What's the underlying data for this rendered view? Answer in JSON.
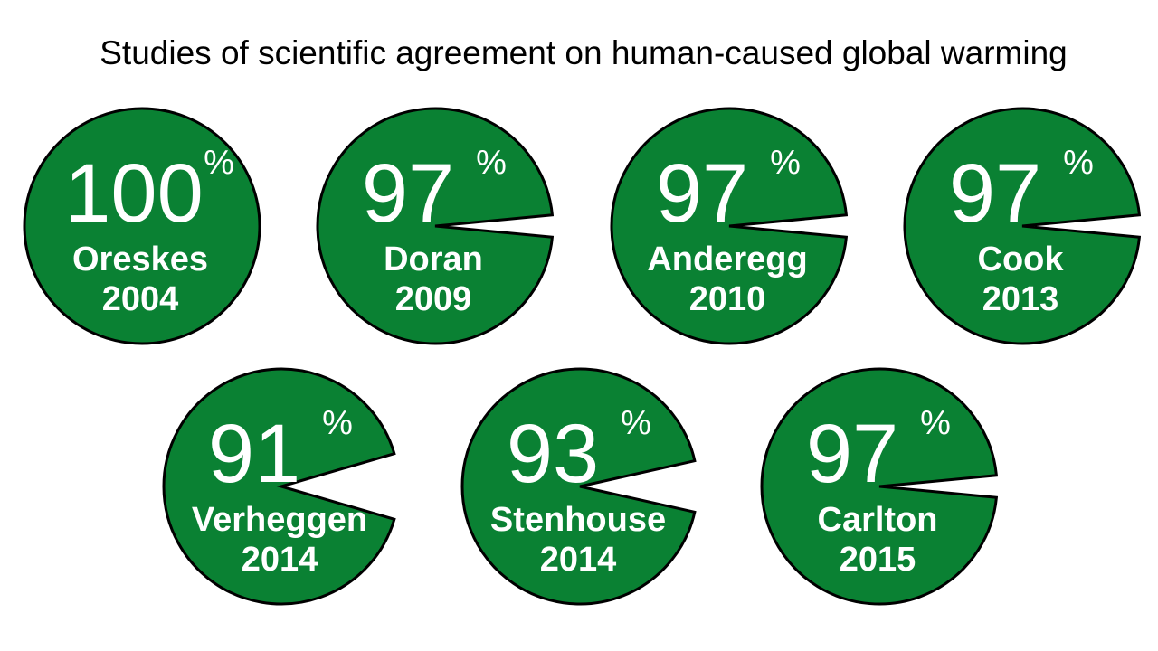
{
  "chart_data": {
    "type": "pie",
    "title": "Studies of scientific agreement on human-caused global warming",
    "unit": "%",
    "colors": {
      "fill": "#0a8133",
      "stroke": "#000000",
      "text": "#ffffff"
    },
    "studies": [
      {
        "author": "Oreskes",
        "year": "2004",
        "value": 100
      },
      {
        "author": "Doran",
        "year": "2009",
        "value": 97
      },
      {
        "author": "Anderegg",
        "year": "2010",
        "value": 97
      },
      {
        "author": "Cook",
        "year": "2013",
        "value": 97
      },
      {
        "author": "Verheggen",
        "year": "2014",
        "value": 91
      },
      {
        "author": "Stenhouse",
        "year": "2014",
        "value": 93
      },
      {
        "author": "Carlton",
        "year": "2015",
        "value": 97
      }
    ]
  }
}
